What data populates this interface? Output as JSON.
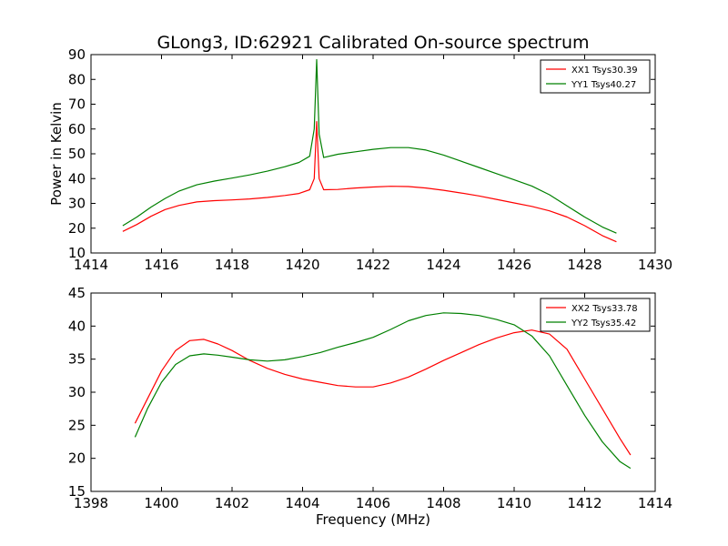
{
  "figure": {
    "title": "GLong3, ID:62921 Calibrated On-source spectrum"
  },
  "chart_data": [
    {
      "type": "line",
      "title": "GLong3, ID:62921 Calibrated On-source spectrum",
      "xlabel": "",
      "ylabel": "Power in Kelvin",
      "xlim": [
        1414,
        1430
      ],
      "ylim": [
        10,
        90
      ],
      "xticks": [
        1414,
        1416,
        1418,
        1420,
        1422,
        1424,
        1426,
        1428,
        1430
      ],
      "yticks": [
        10,
        20,
        30,
        40,
        50,
        60,
        70,
        80,
        90
      ],
      "grid": false,
      "legend": "top-right",
      "series": [
        {
          "name": "XX1 Tsys30.39",
          "color": "#ff0000",
          "x": [
            1414.9,
            1415.3,
            1415.7,
            1416.1,
            1416.5,
            1417.0,
            1417.5,
            1418.0,
            1418.5,
            1419.0,
            1419.5,
            1419.9,
            1420.2,
            1420.33,
            1420.4,
            1420.47,
            1420.6,
            1421.0,
            1421.5,
            1422.0,
            1422.5,
            1423.0,
            1423.5,
            1424.0,
            1424.5,
            1425.0,
            1425.5,
            1426.0,
            1426.5,
            1427.0,
            1427.5,
            1428.0,
            1428.5,
            1428.9
          ],
          "y": [
            18.7,
            21.5,
            24.8,
            27.5,
            29.2,
            30.6,
            31.1,
            31.4,
            31.8,
            32.4,
            33.2,
            34.0,
            35.5,
            40,
            63,
            40,
            35.5,
            35.6,
            36.2,
            36.6,
            36.9,
            36.8,
            36.2,
            35.3,
            34.2,
            33.0,
            31.6,
            30.2,
            28.8,
            27.0,
            24.5,
            21.0,
            17.0,
            14.5
          ]
        },
        {
          "name": "YY1 Tsys40.27",
          "color": "#008000",
          "x": [
            1414.9,
            1415.3,
            1415.7,
            1416.1,
            1416.5,
            1417.0,
            1417.5,
            1418.0,
            1418.5,
            1419.0,
            1419.5,
            1419.9,
            1420.2,
            1420.33,
            1420.4,
            1420.47,
            1420.6,
            1421.0,
            1421.5,
            1422.0,
            1422.5,
            1423.0,
            1423.5,
            1424.0,
            1424.5,
            1425.0,
            1425.5,
            1426.0,
            1426.5,
            1427.0,
            1427.5,
            1428.0,
            1428.5,
            1428.9
          ],
          "y": [
            21.0,
            24.5,
            28.5,
            32.0,
            35.0,
            37.5,
            39.0,
            40.2,
            41.5,
            43.0,
            44.8,
            46.5,
            49.0,
            60,
            88,
            58,
            48.5,
            49.8,
            50.8,
            51.8,
            52.5,
            52.5,
            51.5,
            49.5,
            47.0,
            44.5,
            42.0,
            39.5,
            37.0,
            33.5,
            29.0,
            24.5,
            20.5,
            18.0
          ]
        }
      ]
    },
    {
      "type": "line",
      "title": "",
      "xlabel": "Frequency (MHz)",
      "ylabel": "",
      "xlim": [
        1398,
        1414
      ],
      "ylim": [
        15,
        45
      ],
      "xticks": [
        1398,
        1400,
        1402,
        1404,
        1406,
        1408,
        1410,
        1412,
        1414
      ],
      "yticks": [
        15,
        20,
        25,
        30,
        35,
        40,
        45
      ],
      "grid": false,
      "legend": "top-right",
      "series": [
        {
          "name": "XX2 Tsys33.78",
          "color": "#ff0000",
          "x": [
            1399.25,
            1399.6,
            1400.0,
            1400.4,
            1400.8,
            1401.2,
            1401.6,
            1402.0,
            1402.5,
            1403.0,
            1403.5,
            1404.0,
            1404.5,
            1405.0,
            1405.5,
            1406.0,
            1406.5,
            1407.0,
            1407.5,
            1408.0,
            1408.5,
            1409.0,
            1409.5,
            1410.0,
            1410.5,
            1411.0,
            1411.5,
            1412.0,
            1412.5,
            1413.0,
            1413.3
          ],
          "y": [
            25.3,
            29.0,
            33.2,
            36.3,
            37.8,
            38.0,
            37.3,
            36.3,
            34.8,
            33.6,
            32.7,
            32.0,
            31.5,
            31.0,
            30.8,
            30.8,
            31.4,
            32.3,
            33.5,
            34.8,
            36.0,
            37.2,
            38.2,
            39.0,
            39.4,
            38.8,
            36.5,
            32.0,
            27.5,
            23.0,
            20.5
          ]
        },
        {
          "name": "YY2 Tsys35.42",
          "color": "#008000",
          "x": [
            1399.25,
            1399.6,
            1400.0,
            1400.4,
            1400.8,
            1401.2,
            1401.6,
            1402.0,
            1402.5,
            1403.0,
            1403.5,
            1404.0,
            1404.5,
            1405.0,
            1405.5,
            1406.0,
            1406.5,
            1407.0,
            1407.5,
            1408.0,
            1408.5,
            1409.0,
            1409.5,
            1410.0,
            1410.5,
            1411.0,
            1411.5,
            1412.0,
            1412.5,
            1413.0,
            1413.3
          ],
          "y": [
            23.2,
            27.5,
            31.5,
            34.2,
            35.5,
            35.8,
            35.6,
            35.3,
            34.9,
            34.7,
            34.9,
            35.4,
            36.0,
            36.8,
            37.5,
            38.3,
            39.5,
            40.8,
            41.6,
            42.0,
            41.9,
            41.6,
            41.0,
            40.2,
            38.5,
            35.5,
            31.0,
            26.5,
            22.5,
            19.5,
            18.5
          ]
        }
      ]
    }
  ]
}
